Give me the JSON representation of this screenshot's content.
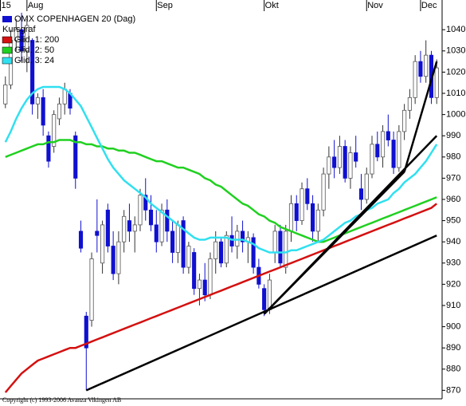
{
  "chart_data": {
    "type": "candlestick",
    "title": "OMX COPENHAGEN 20 (Dag)",
    "subtitle": "Kursgraf",
    "footer": "Copyright (c) 1993-2006 Avanza Vikingen AB",
    "up_color": "#ffffff",
    "down_color": "#1010d0",
    "open": [
      1005,
      1014,
      1035,
      1040,
      1030,
      1035,
      1005,
      1008,
      990,
      985,
      998,
      1005,
      1010,
      990,
      945,
      905,
      903,
      945,
      930,
      955,
      938,
      925,
      940,
      950,
      945,
      948,
      962,
      955,
      948,
      940,
      955,
      945,
      935,
      950,
      928,
      935,
      918,
      922,
      915,
      932,
      940,
      930,
      943,
      938,
      945,
      940,
      942,
      928,
      918,
      908,
      935,
      945,
      928,
      945,
      958,
      950,
      965,
      958,
      945,
      955,
      972,
      980,
      975,
      985,
      970,
      982,
      965,
      960,
      972,
      986,
      980,
      992,
      988,
      975,
      992,
      1002,
      1008,
      1025,
      1018,
      1028,
      1008
    ],
    "high": [
      1018,
      1040,
      1045,
      1048,
      1045,
      1036,
      1010,
      1012,
      992,
      1002,
      1008,
      1015,
      1012,
      992,
      950,
      907,
      935,
      960,
      950,
      958,
      945,
      945,
      955,
      958,
      952,
      965,
      970,
      962,
      955,
      958,
      960,
      950,
      950,
      952,
      940,
      937,
      925,
      930,
      935,
      945,
      942,
      945,
      952,
      948,
      950,
      945,
      944,
      932,
      920,
      925,
      948,
      948,
      948,
      962,
      962,
      968,
      970,
      962,
      958,
      975,
      985,
      988,
      990,
      988,
      985,
      990,
      972,
      975,
      990,
      992,
      995,
      1000,
      992,
      995,
      1005,
      1012,
      1028,
      1030,
      1035,
      1030,
      1026
    ],
    "low": [
      1003,
      1012,
      1030,
      1025,
      1020,
      1000,
      998,
      990,
      975,
      982,
      995,
      1000,
      1000,
      965,
      935,
      870,
      900,
      935,
      925,
      935,
      922,
      920,
      935,
      940,
      935,
      945,
      950,
      945,
      935,
      938,
      940,
      930,
      930,
      925,
      925,
      915,
      910,
      912,
      913,
      925,
      928,
      928,
      935,
      932,
      935,
      930,
      925,
      918,
      905,
      906,
      930,
      928,
      925,
      940,
      945,
      948,
      955,
      940,
      940,
      952,
      965,
      970,
      972,
      968,
      965,
      975,
      955,
      958,
      970,
      978,
      975,
      985,
      972,
      973,
      988,
      998,
      1005,
      1015,
      1015,
      1005,
      1005
    ],
    "close": [
      1014,
      1035,
      1040,
      1030,
      1042,
      1005,
      1008,
      995,
      978,
      1000,
      1005,
      1012,
      1003,
      970,
      937,
      890,
      932,
      943,
      948,
      938,
      925,
      940,
      952,
      945,
      948,
      962,
      955,
      948,
      940,
      955,
      945,
      935,
      948,
      928,
      938,
      918,
      922,
      915,
      932,
      940,
      930,
      943,
      938,
      945,
      940,
      942,
      928,
      920,
      908,
      922,
      945,
      930,
      945,
      958,
      950,
      965,
      958,
      945,
      955,
      972,
      980,
      975,
      985,
      970,
      982,
      978,
      960,
      972,
      986,
      980,
      992,
      988,
      975,
      992,
      1002,
      1008,
      1025,
      1018,
      1028,
      1008,
      1022
    ],
    "series": [
      {
        "name": "Glid. 1: 200",
        "color": "#d41010",
        "values": [
          869,
          872,
          875,
          878,
          880,
          882,
          884,
          885,
          886,
          887,
          888,
          889,
          890,
          890,
          891,
          892,
          893,
          894,
          895,
          896,
          897,
          898,
          899,
          900,
          901,
          902,
          903,
          904,
          905,
          906,
          907,
          908,
          909,
          910,
          911,
          912,
          913,
          914,
          915,
          916,
          917,
          918,
          919,
          920,
          921,
          922,
          923,
          924,
          925,
          926,
          927,
          928,
          929,
          930,
          931,
          932,
          933,
          934,
          935,
          936,
          937,
          938,
          939,
          940,
          941,
          942,
          943,
          944,
          945,
          946,
          947,
          948,
          949,
          950,
          951,
          952,
          953,
          954,
          955,
          956,
          958
        ]
      },
      {
        "name": "Glid. 2: 50",
        "color": "#20d020",
        "values": [
          980,
          981,
          982,
          983,
          984,
          985,
          986,
          986,
          987,
          987,
          988,
          988,
          988,
          987,
          987,
          986,
          986,
          985,
          985,
          984,
          984,
          983,
          983,
          982,
          982,
          981,
          980,
          979,
          978,
          978,
          977,
          976,
          975,
          975,
          974,
          973,
          972,
          970,
          969,
          967,
          966,
          964,
          962,
          960,
          958,
          957,
          955,
          953,
          952,
          950,
          949,
          947,
          946,
          945,
          944,
          943,
          942,
          941,
          940,
          940,
          941,
          942,
          943,
          944,
          945,
          946,
          947,
          948,
          949,
          950,
          951,
          952,
          953,
          954,
          955,
          956,
          957,
          958,
          959,
          960,
          961
        ]
      },
      {
        "name": "Glid. 3: 24",
        "color": "#30e0f0",
        "values": [
          987,
          992,
          998,
          1003,
          1007,
          1010,
          1012,
          1013,
          1013,
          1013,
          1013,
          1012,
          1010,
          1007,
          1004,
          999,
          994,
          989,
          984,
          979,
          975,
          972,
          969,
          967,
          965,
          963,
          961,
          958,
          956,
          954,
          952,
          950,
          948,
          946,
          944,
          942,
          941,
          941,
          942,
          942,
          942,
          942,
          941,
          941,
          941,
          940,
          939,
          937,
          936,
          935,
          935,
          935,
          935,
          936,
          936,
          937,
          938,
          939,
          940,
          941,
          943,
          945,
          947,
          949,
          950,
          952,
          953,
          955,
          956,
          958,
          959,
          960,
          963,
          965,
          968,
          970,
          972,
          975,
          978,
          982,
          986
        ]
      }
    ],
    "trend_color": "#000000",
    "trend_lines": [
      {
        "x": [
          15,
          80
        ],
        "y": [
          870,
          943
        ]
      },
      {
        "x": [
          48,
          80
        ],
        "y": [
          906,
          990
        ]
      },
      {
        "x": [
          48,
          74
        ],
        "y": [
          906,
          973
        ]
      },
      {
        "x": [
          74,
          80
        ],
        "y": [
          973,
          1025
        ]
      }
    ],
    "xlim": [
      -1,
      81
    ],
    "xticks": [
      {
        "value": -1,
        "label": "15"
      },
      {
        "value": 4,
        "label": "Aug"
      },
      {
        "value": 28,
        "label": "Sep"
      },
      {
        "value": 48,
        "label": "Okt"
      },
      {
        "value": 67,
        "label": "Nov"
      },
      {
        "value": 77,
        "label": "Dec"
      }
    ],
    "ylim": [
      866,
      1054
    ],
    "yticks": [
      870,
      880,
      890,
      900,
      910,
      920,
      930,
      940,
      950,
      960,
      970,
      980,
      990,
      1000,
      1010,
      1020,
      1030,
      1040
    ]
  }
}
